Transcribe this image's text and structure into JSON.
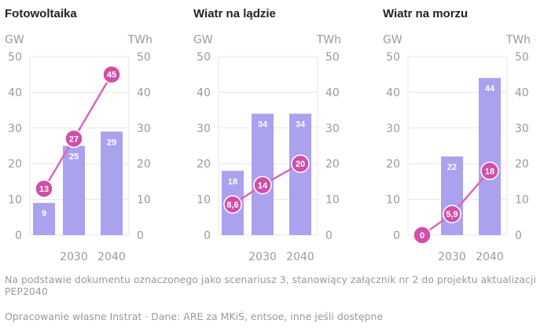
{
  "colors": {
    "bar": "#aaa1ef",
    "line": "#d56ab8",
    "point": "#d04fa8",
    "grid": "#e7e7e7",
    "axis_text": "#9a9a9a",
    "title": "#222222"
  },
  "chart_data": [
    {
      "type": "bar",
      "title": "Fotowoltaika",
      "left_unit": "GW",
      "right_unit": "TWh",
      "x_ticks": [
        "",
        "2030",
        "2040"
      ],
      "left_ticks": [
        "0",
        "10",
        "20",
        "30",
        "40",
        "50"
      ],
      "right_ticks": [
        "0",
        "10",
        "20",
        "30",
        "40",
        "50"
      ],
      "ylim": [
        0,
        50
      ],
      "bars": {
        "values": [
          9,
          25,
          29
        ],
        "labels": [
          "9",
          "25",
          "29"
        ]
      },
      "line": {
        "values": [
          13,
          27,
          45
        ],
        "labels": [
          "13",
          "27",
          "45"
        ]
      }
    },
    {
      "type": "bar",
      "title": "Wiatr na lądzie",
      "left_unit": "GW",
      "right_unit": "TWh",
      "x_ticks": [
        "",
        "2030",
        "2040"
      ],
      "left_ticks": [
        "0",
        "10",
        "20",
        "30",
        "40",
        "50"
      ],
      "right_ticks": [
        "0",
        "10",
        "20",
        "30",
        "40",
        "50"
      ],
      "ylim": [
        0,
        50
      ],
      "bars": {
        "values": [
          18,
          34,
          34
        ],
        "labels": [
          "18",
          "34",
          "34"
        ]
      },
      "line": {
        "values": [
          8.6,
          14,
          20
        ],
        "labels": [
          "8,6",
          "14",
          "20"
        ]
      }
    },
    {
      "type": "bar",
      "title": "Wiatr na morzu",
      "left_unit": "GW",
      "right_unit": "TWh",
      "x_ticks": [
        "",
        "2030",
        "2040"
      ],
      "left_ticks": [
        "0",
        "10",
        "20",
        "30",
        "40",
        "50"
      ],
      "right_ticks": [
        "0",
        "10",
        "20",
        "30",
        "40",
        "50"
      ],
      "ylim": [
        0,
        50
      ],
      "bars": {
        "values": [
          0,
          22,
          44
        ],
        "labels": [
          "",
          "22",
          "44"
        ]
      },
      "line": {
        "values": [
          0,
          5.9,
          18
        ],
        "labels": [
          "0",
          "5,9",
          "18"
        ]
      }
    }
  ],
  "footnote": {
    "note": "Na podstawie dokumentu oznaczonego jako scenariusz 3, stanowiący załącznik nr 2 do projektu aktualizacji PEP2040",
    "source": "Opracowanie własne Instrat · Dane: ARE za MKiŚ, entsoe, inne jeśli dostępne"
  }
}
